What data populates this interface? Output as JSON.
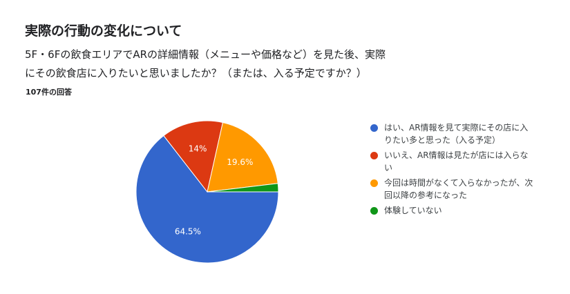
{
  "title": "実際の行動の変化について",
  "question_lines": [
    "5F・6Fの飲食エリアでARの詳細情報（メニューや価格など）を見た後、実際",
    "にその飲食店に入りたいと思いましたか？（または、入る予定ですか？）"
  ],
  "response_count": "107件の回答",
  "chart_data": {
    "type": "pie",
    "title": "",
    "slices": [
      {
        "label": "はい、AR情報を見て実際にその店に入りたい多と思った（入る予定）",
        "value": 64.5,
        "color": "#3366cc",
        "data_label": "64.5%"
      },
      {
        "label": "いいえ、AR情報は見たが店には入らない",
        "value": 14.0,
        "color": "#dc3912",
        "data_label": "14%"
      },
      {
        "label": "今回は時間がなくて入らなかったが、次回以降の参考になった",
        "value": 19.6,
        "color": "#ff9900",
        "data_label": "19.6%"
      },
      {
        "label": "体験していない",
        "value": 1.9,
        "color": "#109618",
        "data_label": ""
      }
    ],
    "legend_position": "right"
  },
  "legend": [
    {
      "line1": "はい、AR情報を見て実際にその店に入",
      "line2": "りたい多と思った（入る予定）",
      "color": "#3366cc"
    },
    {
      "line1": "いいえ、AR情報は見たが店には入らな",
      "line2": "い",
      "color": "#dc3912"
    },
    {
      "line1": "今回は時間がなくて入らなかったが、次",
      "line2": "回以降の参考になった",
      "color": "#ff9900"
    },
    {
      "line1": "体験していない",
      "line2": "",
      "color": "#109618"
    }
  ]
}
